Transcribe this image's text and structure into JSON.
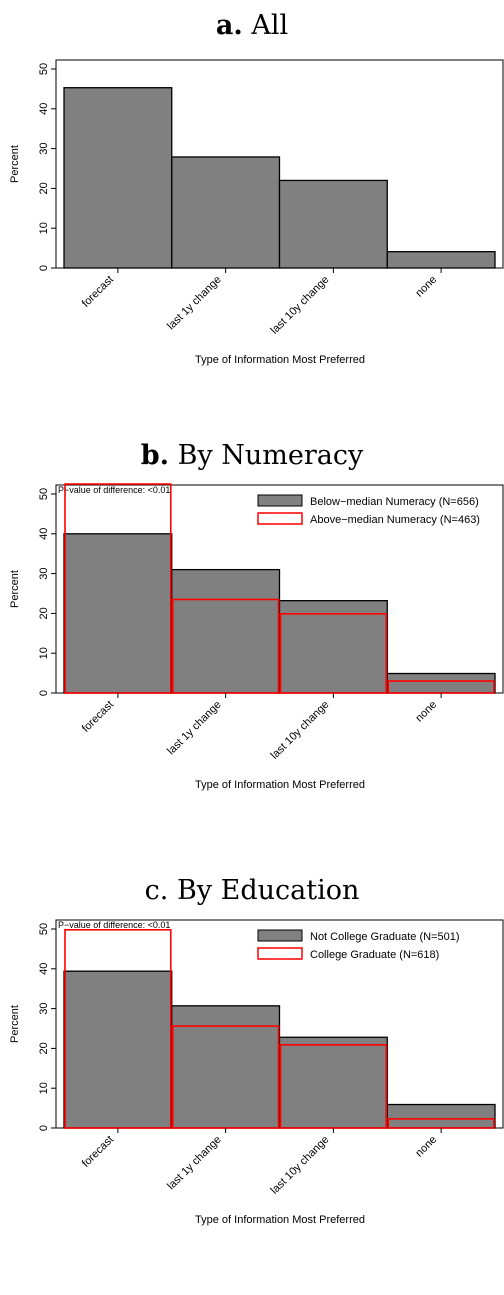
{
  "chart_data": [
    {
      "type": "bar",
      "title_prefix": "a.",
      "title_prefix_bold": true,
      "title": "All",
      "xlabel": "Type of Information Most Preferred",
      "ylabel": "Percent",
      "categories": [
        "forecast",
        "last 1y change",
        "last 10y change",
        "none"
      ],
      "yticks": [
        "0",
        "10",
        "20",
        "30",
        "40",
        "50"
      ],
      "ylim": [
        0,
        50
      ],
      "series": [
        {
          "values": [
            45.3,
            27.9,
            22.0,
            4.1
          ],
          "style": "filled",
          "color": "#808080"
        }
      ],
      "annotation": "",
      "legend": "none"
    },
    {
      "type": "bar",
      "title_prefix": "b.",
      "title_prefix_bold": true,
      "title": "By Numeracy",
      "xlabel": "Type of Information Most Preferred",
      "ylabel": "Percent",
      "categories": [
        "forecast",
        "last 1y change",
        "last 10y change",
        "none"
      ],
      "yticks": [
        "0",
        "10",
        "20",
        "30",
        "40",
        "50"
      ],
      "ylim": [
        0,
        50
      ],
      "series": [
        {
          "name": "Below−median Numeracy (N=656)",
          "values": [
            40.0,
            31.0,
            23.2,
            4.9
          ],
          "style": "filled",
          "color": "#808080"
        },
        {
          "name": "Above−median Numeracy (N=463)",
          "values": [
            52.5,
            23.5,
            19.9,
            3.0
          ],
          "style": "outline",
          "color": "#ff0000"
        }
      ],
      "annotation": "P−value of difference: <0.01",
      "legend": "top-right"
    },
    {
      "type": "bar",
      "title_prefix": "c.",
      "title_prefix_bold": false,
      "title": "By Education",
      "xlabel": "Type of Information Most Preferred",
      "ylabel": "Percent",
      "categories": [
        "forecast",
        "last 1y change",
        "last 10y change",
        "none"
      ],
      "yticks": [
        "0",
        "10",
        "20",
        "30",
        "40",
        "50"
      ],
      "ylim": [
        0,
        50
      ],
      "series": [
        {
          "name": "Not College Graduate (N=501)",
          "values": [
            39.4,
            30.7,
            22.8,
            5.9
          ],
          "style": "filled",
          "color": "#808080"
        },
        {
          "name": "College Graduate (N=618)",
          "values": [
            49.8,
            25.6,
            20.9,
            2.3
          ],
          "style": "outline",
          "color": "#ff0000"
        }
      ],
      "annotation": "P−value of difference: <0.01",
      "legend": "top-right"
    }
  ]
}
